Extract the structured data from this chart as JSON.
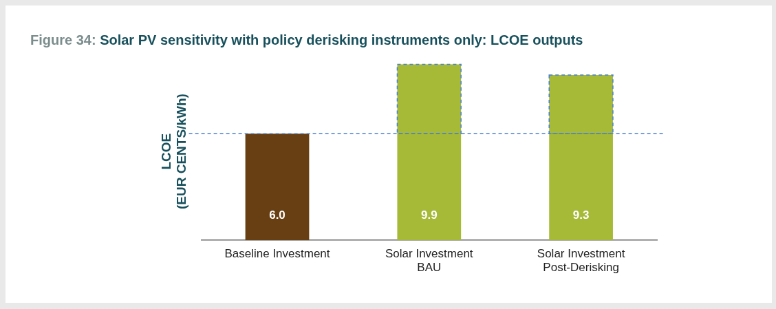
{
  "chart_data": {
    "type": "bar",
    "title": "Figure 34: Solar PV sensitivity with policy derisking instruments only: LCOE outputs",
    "ylabel": "LCOE\n(EUR CENTS/kWh)",
    "categories": [
      "Baseline Investment",
      "Solar Investment\nBAU",
      "Solar Investment\nPost-Derisking"
    ],
    "values": [
      6.0,
      9.9,
      9.3
    ],
    "colors": [
      "#673f12",
      "#a6ba38",
      "#a6ba38"
    ],
    "value_labels": [
      "6.0",
      "9.9",
      "9.3"
    ],
    "tick_labels": "x",
    "grid": false,
    "legend": false,
    "ref_lines": [
      {
        "axis": "y",
        "value": 6.0,
        "color": "#4a7fd0",
        "line_style": "dashed"
      }
    ]
  }
}
